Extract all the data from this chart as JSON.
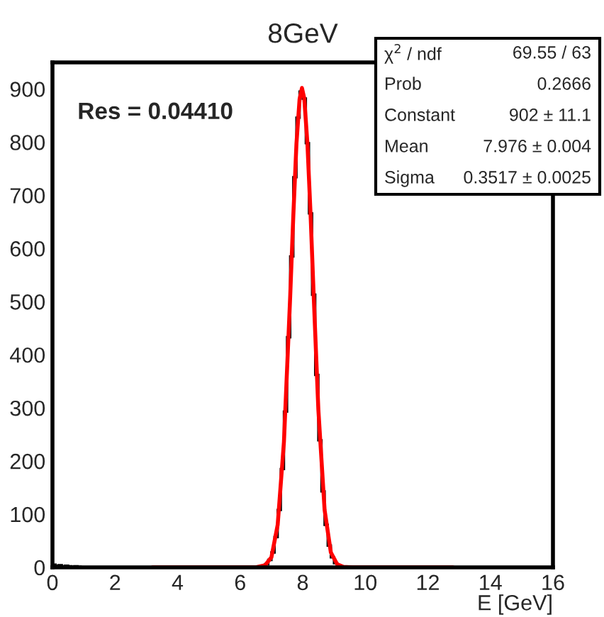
{
  "chart_data": {
    "type": "histogram",
    "title": "8GeV",
    "xlabel": "E [GeV]",
    "xlim": [
      0,
      16
    ],
    "xticks": [
      0,
      2,
      4,
      6,
      8,
      10,
      12,
      14,
      16
    ],
    "ylim": [
      0,
      950
    ],
    "yticks": [
      0,
      100,
      200,
      300,
      400,
      500,
      600,
      700,
      800,
      900
    ],
    "grid": false,
    "legend": false,
    "annotations": [
      "Res = 0.04410",
      "χ$^{2}$ / ndf",
      "69.55 / 63",
      "Prob",
      "0.2666",
      "Constant",
      "902 ± 11.1",
      "Mean",
      "7.976 ± 0.004",
      "Sigma",
      "0.3517 ± 0.0025"
    ],
    "series": [
      {
        "color": "#000000",
        "bins": [
          0.0,
          0.1,
          0.2,
          0.3,
          0.4,
          0.5,
          0.6,
          0.7,
          0.8,
          0.9,
          1.0,
          1.1,
          1.2,
          1.3,
          1.4,
          1.5,
          1.6,
          1.7,
          1.8,
          1.9,
          2.0,
          2.1,
          2.2,
          2.3,
          2.4,
          2.5,
          2.6,
          2.7,
          2.8,
          2.9,
          3.0,
          3.1,
          3.2,
          3.3,
          3.4,
          3.5,
          3.6,
          3.7,
          3.8,
          3.9,
          4.0,
          4.1,
          4.2,
          4.3,
          4.4,
          4.5,
          4.6,
          4.7,
          4.8,
          4.9,
          5.0,
          5.1,
          5.2,
          5.3,
          5.4,
          5.5,
          5.6,
          5.7,
          5.8,
          5.9,
          6.0,
          6.1,
          6.2,
          6.3,
          6.4,
          6.5,
          6.6,
          6.7,
          6.8,
          6.9,
          7.0,
          7.1,
          7.2,
          7.3,
          7.4,
          7.5,
          7.6,
          7.7,
          7.8,
          7.9,
          8.0,
          8.1,
          8.2,
          8.3,
          8.4,
          8.5,
          8.6,
          8.7,
          8.8,
          8.9,
          9.0,
          9.1,
          9.2,
          9.3,
          9.4,
          9.5,
          9.6,
          9.7,
          9.8,
          9.9,
          10.0
        ],
        "values": [
          5,
          3,
          4,
          2,
          3,
          2,
          1,
          2,
          1,
          0,
          0,
          0,
          0,
          0,
          0,
          0,
          0,
          0,
          0,
          0,
          0,
          0,
          0,
          0,
          0,
          0,
          0,
          0,
          0,
          0,
          0,
          0,
          0,
          0,
          0,
          0,
          0,
          0,
          0,
          0,
          0,
          0,
          0,
          0,
          0,
          0,
          0,
          0,
          0,
          0,
          0,
          0,
          0,
          0,
          0,
          0,
          0,
          0,
          0,
          0,
          0,
          0,
          0,
          0,
          0,
          0,
          1,
          2,
          6,
          14,
          28,
          57,
          108,
          185,
          293,
          433,
          585,
          734,
          846,
          895,
          882,
          798,
          666,
          513,
          362,
          239,
          143,
          80,
          41,
          19,
          8,
          4,
          1,
          0,
          0,
          0,
          0,
          0,
          0,
          0
        ]
      },
      {
        "type": "line",
        "color": "#ff0000",
        "x": [
          3.2,
          6.0,
          6.5,
          6.8,
          7.0,
          7.2,
          7.4,
          7.6,
          7.7,
          7.8,
          7.9,
          7.976,
          8.05,
          8.15,
          8.25,
          8.35,
          8.5,
          8.7,
          8.9,
          9.1,
          9.3,
          9.6,
          10.0,
          12.8
        ],
        "values": [
          0,
          0,
          0,
          4,
          19,
          80,
          236,
          510,
          662,
          797,
          881,
          902,
          882,
          798,
          666,
          513,
          297,
          108,
          28,
          6,
          1,
          0,
          0,
          0
        ]
      }
    ]
  }
}
